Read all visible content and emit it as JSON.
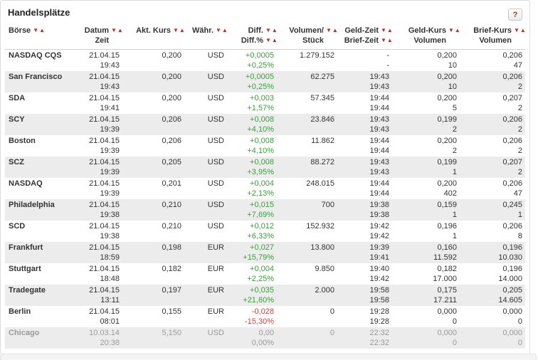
{
  "title": "Handelsplätze",
  "help_button": {
    "label": "?"
  },
  "sort_icons": {
    "desc": "▼",
    "asc": "▲"
  },
  "colors": {
    "sort_arrow": "#c22a22",
    "positive": "#3e9c3e",
    "negative": "#d84040",
    "muted": "#9a9a9a",
    "row_alt": "#ececec"
  },
  "columns": [
    {
      "key": "boerse",
      "align": "left",
      "lines": [
        {
          "label": "Börse",
          "sort": true
        },
        {
          "label": "",
          "sort": false
        }
      ]
    },
    {
      "key": "datum",
      "align": "right",
      "lines": [
        {
          "label": "Datum",
          "sort": true
        },
        {
          "label": "Zeit",
          "sort": false
        }
      ]
    },
    {
      "key": "kurs",
      "align": "right",
      "lines": [
        {
          "label": "Akt. Kurs",
          "sort": true
        },
        {
          "label": "",
          "sort": false
        }
      ]
    },
    {
      "key": "waehrung",
      "align": "right",
      "lines": [
        {
          "label": "Währ.",
          "sort": true
        },
        {
          "label": "",
          "sort": false
        }
      ]
    },
    {
      "key": "diff",
      "align": "right",
      "lines": [
        {
          "label": "Diff.",
          "sort": true
        },
        {
          "label": "Diff.%",
          "sort": true
        }
      ]
    },
    {
      "key": "volumen",
      "align": "right",
      "lines": [
        {
          "label": "Volumen/",
          "sort": true
        },
        {
          "label": "Stück",
          "sort": false
        }
      ]
    },
    {
      "key": "geldzeit",
      "align": "right",
      "lines": [
        {
          "label": "Geld-Zeit",
          "sort": true
        },
        {
          "label": "Brief-Zeit",
          "sort": true
        }
      ]
    },
    {
      "key": "geldkurs",
      "align": "right",
      "lines": [
        {
          "label": "Geld-Kurs",
          "sort": true
        },
        {
          "label": "Volumen",
          "sort": false
        }
      ]
    },
    {
      "key": "briefkurs",
      "align": "right",
      "lines": [
        {
          "label": "Brief-Kurs",
          "sort": true
        },
        {
          "label": "Volumen",
          "sort": false
        }
      ]
    }
  ],
  "rows": [
    {
      "boerse": "NASDAQ CQS",
      "datum": "21.04.15",
      "zeit": "19:43",
      "akt_kurs": "0,200",
      "waehrung": "USD",
      "diff": "+0,0005",
      "diff_pct": "+0,25%",
      "trend": "up",
      "volumen": "1.279.152",
      "geld_zeit": "-",
      "brief_zeit": "-",
      "geld_kurs": "0,200",
      "geld_volumen": "10",
      "brief_kurs": "0,206",
      "brief_volumen": "47",
      "muted": false
    },
    {
      "boerse": "San Francisco",
      "datum": "21.04.15",
      "zeit": "19:43",
      "akt_kurs": "0,200",
      "waehrung": "USD",
      "diff": "+0,0005",
      "diff_pct": "+0,25%",
      "trend": "up",
      "volumen": "62.275",
      "geld_zeit": "19:43",
      "brief_zeit": "19:43",
      "geld_kurs": "0,200",
      "geld_volumen": "10",
      "brief_kurs": "0,206",
      "brief_volumen": "2",
      "muted": false
    },
    {
      "boerse": "SDA",
      "datum": "21.04.15",
      "zeit": "19:41",
      "akt_kurs": "0,200",
      "waehrung": "USD",
      "diff": "+0,003",
      "diff_pct": "+1,57%",
      "trend": "up",
      "volumen": "57.345",
      "geld_zeit": "19:44",
      "brief_zeit": "19:44",
      "geld_kurs": "0,200",
      "geld_volumen": "5",
      "brief_kurs": "0,207",
      "brief_volumen": "2",
      "muted": false
    },
    {
      "boerse": "SCY",
      "datum": "21.04.15",
      "zeit": "19:39",
      "akt_kurs": "0,206",
      "waehrung": "USD",
      "diff": "+0,008",
      "diff_pct": "+4,10%",
      "trend": "up",
      "volumen": "23.846",
      "geld_zeit": "19:43",
      "brief_zeit": "19:43",
      "geld_kurs": "0,199",
      "geld_volumen": "2",
      "brief_kurs": "0,206",
      "brief_volumen": "2",
      "muted": false
    },
    {
      "boerse": "Boston",
      "datum": "21.04.15",
      "zeit": "19:39",
      "akt_kurs": "0,206",
      "waehrung": "USD",
      "diff": "+0,008",
      "diff_pct": "+4,10%",
      "trend": "up",
      "volumen": "11.862",
      "geld_zeit": "19:44",
      "brief_zeit": "19:44",
      "geld_kurs": "0,200",
      "geld_volumen": "2",
      "brief_kurs": "0,206",
      "brief_volumen": "2",
      "muted": false
    },
    {
      "boerse": "SCZ",
      "datum": "21.04.15",
      "zeit": "19:39",
      "akt_kurs": "0,205",
      "waehrung": "USD",
      "diff": "+0,008",
      "diff_pct": "+3,95%",
      "trend": "up",
      "volumen": "88.272",
      "geld_zeit": "19:43",
      "brief_zeit": "19:43",
      "geld_kurs": "0,199",
      "geld_volumen": "1",
      "brief_kurs": "0,207",
      "brief_volumen": "2",
      "muted": false
    },
    {
      "boerse": "NASDAQ",
      "datum": "21.04.15",
      "zeit": "19:39",
      "akt_kurs": "0,201",
      "waehrung": "USD",
      "diff": "+0,004",
      "diff_pct": "+2,13%",
      "trend": "up",
      "volumen": "248.015",
      "geld_zeit": "19:44",
      "brief_zeit": "19:44",
      "geld_kurs": "0,200",
      "geld_volumen": "402",
      "brief_kurs": "0,206",
      "brief_volumen": "47",
      "muted": false
    },
    {
      "boerse": "Philadelphia",
      "datum": "21.04.15",
      "zeit": "19:38",
      "akt_kurs": "0,210",
      "waehrung": "USD",
      "diff": "+0,015",
      "diff_pct": "+7,69%",
      "trend": "up",
      "volumen": "700",
      "geld_zeit": "19:38",
      "brief_zeit": "19:38",
      "geld_kurs": "0,159",
      "geld_volumen": "1",
      "brief_kurs": "0,245",
      "brief_volumen": "1",
      "muted": false
    },
    {
      "boerse": "SCD",
      "datum": "21.04.15",
      "zeit": "19:38",
      "akt_kurs": "0,210",
      "waehrung": "USD",
      "diff": "+0,012",
      "diff_pct": "+6,33%",
      "trend": "up",
      "volumen": "152.932",
      "geld_zeit": "19:42",
      "brief_zeit": "19:42",
      "geld_kurs": "0,196",
      "geld_volumen": "1",
      "brief_kurs": "0,206",
      "brief_volumen": "8",
      "muted": false
    },
    {
      "boerse": "Frankfurt",
      "datum": "21.04.15",
      "zeit": "18:59",
      "akt_kurs": "0,198",
      "waehrung": "EUR",
      "diff": "+0,027",
      "diff_pct": "+15,79%",
      "trend": "up",
      "volumen": "13.800",
      "geld_zeit": "19:39",
      "brief_zeit": "19:41",
      "geld_kurs": "0,160",
      "geld_volumen": "11.592",
      "brief_kurs": "0,196",
      "brief_volumen": "10.030",
      "muted": false
    },
    {
      "boerse": "Stuttgart",
      "datum": "21.04.15",
      "zeit": "18:48",
      "akt_kurs": "0,182",
      "waehrung": "EUR",
      "diff": "+0,004",
      "diff_pct": "+2,25%",
      "trend": "up",
      "volumen": "9.850",
      "geld_zeit": "19:40",
      "brief_zeit": "19:42",
      "geld_kurs": "0,182",
      "geld_volumen": "17.000",
      "brief_kurs": "0,196",
      "brief_volumen": "14.000",
      "muted": false
    },
    {
      "boerse": "Tradegate",
      "datum": "21.04.15",
      "zeit": "13:11",
      "akt_kurs": "0,197",
      "waehrung": "EUR",
      "diff": "+0,035",
      "diff_pct": "+21,60%",
      "trend": "up",
      "volumen": "2.000",
      "geld_zeit": "19:58",
      "brief_zeit": "19:58",
      "geld_kurs": "0,175",
      "geld_volumen": "17.211",
      "brief_kurs": "0,205",
      "brief_volumen": "14.605",
      "muted": false
    },
    {
      "boerse": "Berlin",
      "datum": "21.04.15",
      "zeit": "08:01",
      "akt_kurs": "0,155",
      "waehrung": "EUR",
      "diff": "-0,028",
      "diff_pct": "-15,30%",
      "trend": "down",
      "volumen": "0",
      "geld_zeit": "19:28",
      "brief_zeit": "19:28",
      "geld_kurs": "0,000",
      "geld_volumen": "0",
      "brief_kurs": "0,000",
      "brief_volumen": "0",
      "muted": false
    },
    {
      "boerse": "Chicago",
      "datum": "10.03.14",
      "zeit": "20:38",
      "akt_kurs": "5,150",
      "waehrung": "USD",
      "diff": "0,00",
      "diff_pct": "0,00%",
      "trend": "flat",
      "volumen": "0",
      "geld_zeit": "22:32",
      "brief_zeit": "22:32",
      "geld_kurs": "0,000",
      "geld_volumen": "0",
      "brief_kurs": "0,000",
      "brief_volumen": "0",
      "muted": true
    }
  ]
}
